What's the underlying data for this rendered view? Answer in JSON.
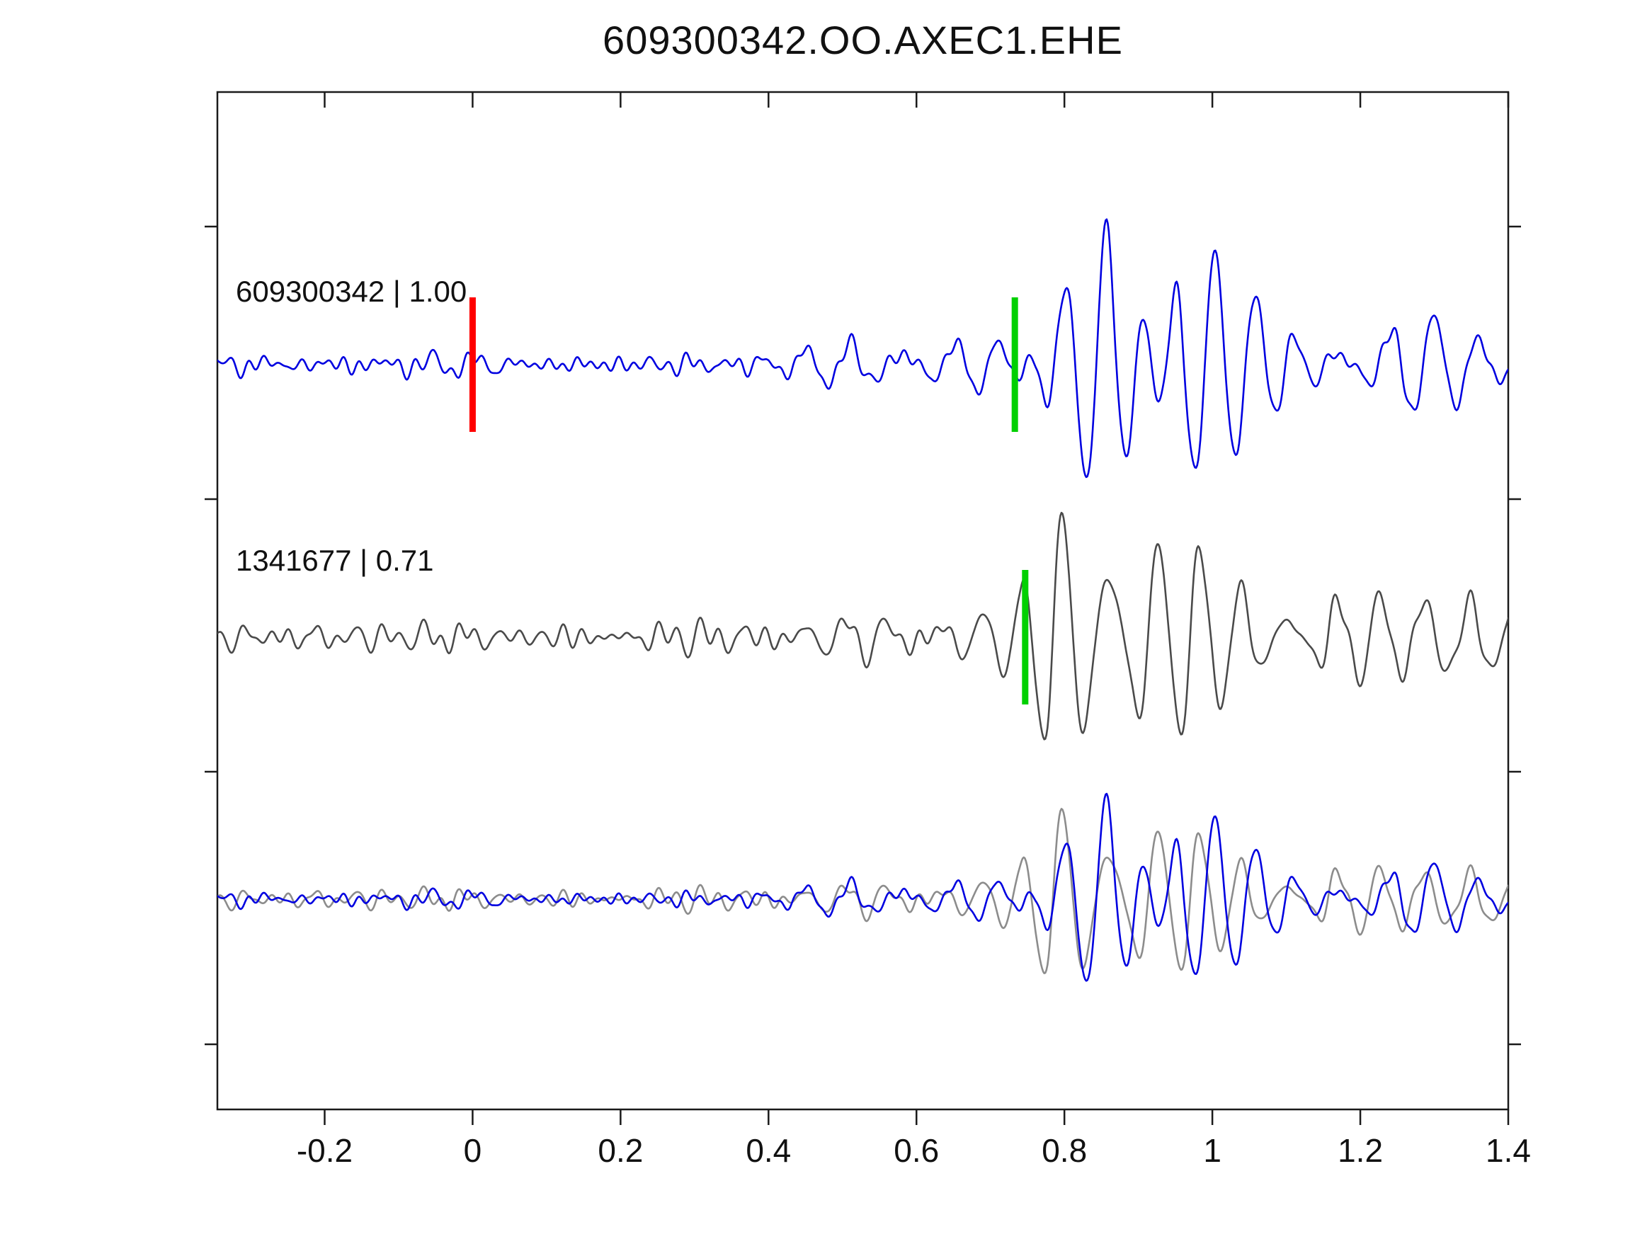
{
  "title": "609300342.OO.AXEC1.EHE",
  "chart_data": {
    "type": "line",
    "title": "609300342.OO.AXEC1.EHE",
    "xlabel": "",
    "ylabel": "",
    "grid": false,
    "legend": "none",
    "xlim": [
      -0.345,
      1.4
    ],
    "x_ticks": [
      -0.2,
      0,
      0.2,
      0.4,
      0.6,
      0.8,
      1,
      1.2,
      1.4
    ],
    "x_tick_labels": [
      "-0.2",
      "0",
      "0.2",
      "0.4",
      "0.6",
      "0.8",
      "1",
      "1.2",
      "1.4"
    ],
    "rows": [
      {
        "name": "template-trace",
        "event_id": "609300342",
        "correlation": 1.0,
        "label": "609300342 | 1.00",
        "color": "#0000e0",
        "seed": 7,
        "noise": 0.05,
        "markers": [
          {
            "x": 0.0,
            "color": "#ff0000",
            "name": "reference-pick"
          },
          {
            "x": 0.733,
            "color": "#00d000",
            "name": "template-pick"
          }
        ],
        "envelope": [
          [
            -0.345,
            0.05
          ],
          [
            0.3,
            0.055
          ],
          [
            0.42,
            0.08
          ],
          [
            0.5,
            0.17
          ],
          [
            0.56,
            0.2
          ],
          [
            0.62,
            0.15
          ],
          [
            0.68,
            0.22
          ],
          [
            0.73,
            0.3
          ],
          [
            0.77,
            0.6
          ],
          [
            0.82,
            0.72
          ],
          [
            0.86,
            1.0
          ],
          [
            0.91,
            0.8
          ],
          [
            0.97,
            0.78
          ],
          [
            1.03,
            0.52
          ],
          [
            1.1,
            0.42
          ],
          [
            1.17,
            0.4
          ],
          [
            1.24,
            0.38
          ],
          [
            1.3,
            0.3
          ],
          [
            1.36,
            0.15
          ],
          [
            1.4,
            0.1
          ]
        ]
      },
      {
        "name": "detection-trace",
        "event_id": "1341677",
        "correlation": 0.71,
        "label": "1341677 | 0.71",
        "color": "#4a4a4a",
        "seed": 13,
        "noise": 0.07,
        "markers": [
          {
            "x": 0.747,
            "color": "#00d000",
            "name": "detection-pick"
          }
        ],
        "envelope": [
          [
            -0.345,
            0.07
          ],
          [
            0.3,
            0.08
          ],
          [
            0.4,
            0.1
          ],
          [
            0.48,
            0.14
          ],
          [
            0.55,
            0.22
          ],
          [
            0.62,
            0.25
          ],
          [
            0.68,
            0.22
          ],
          [
            0.74,
            0.3
          ],
          [
            0.78,
            0.85
          ],
          [
            0.83,
            1.0
          ],
          [
            0.88,
            0.95
          ],
          [
            0.94,
            0.6
          ],
          [
            1.0,
            0.45
          ],
          [
            1.06,
            0.35
          ],
          [
            1.12,
            0.45
          ],
          [
            1.18,
            0.4
          ],
          [
            1.25,
            0.3
          ],
          [
            1.32,
            0.28
          ],
          [
            1.4,
            0.2
          ]
        ]
      },
      {
        "name": "overlay-trace",
        "label": "",
        "overlay_of": [
          1,
          0
        ],
        "colors": [
          "#8c8c8c",
          "#0000e0"
        ],
        "scale": 0.85
      }
    ]
  }
}
